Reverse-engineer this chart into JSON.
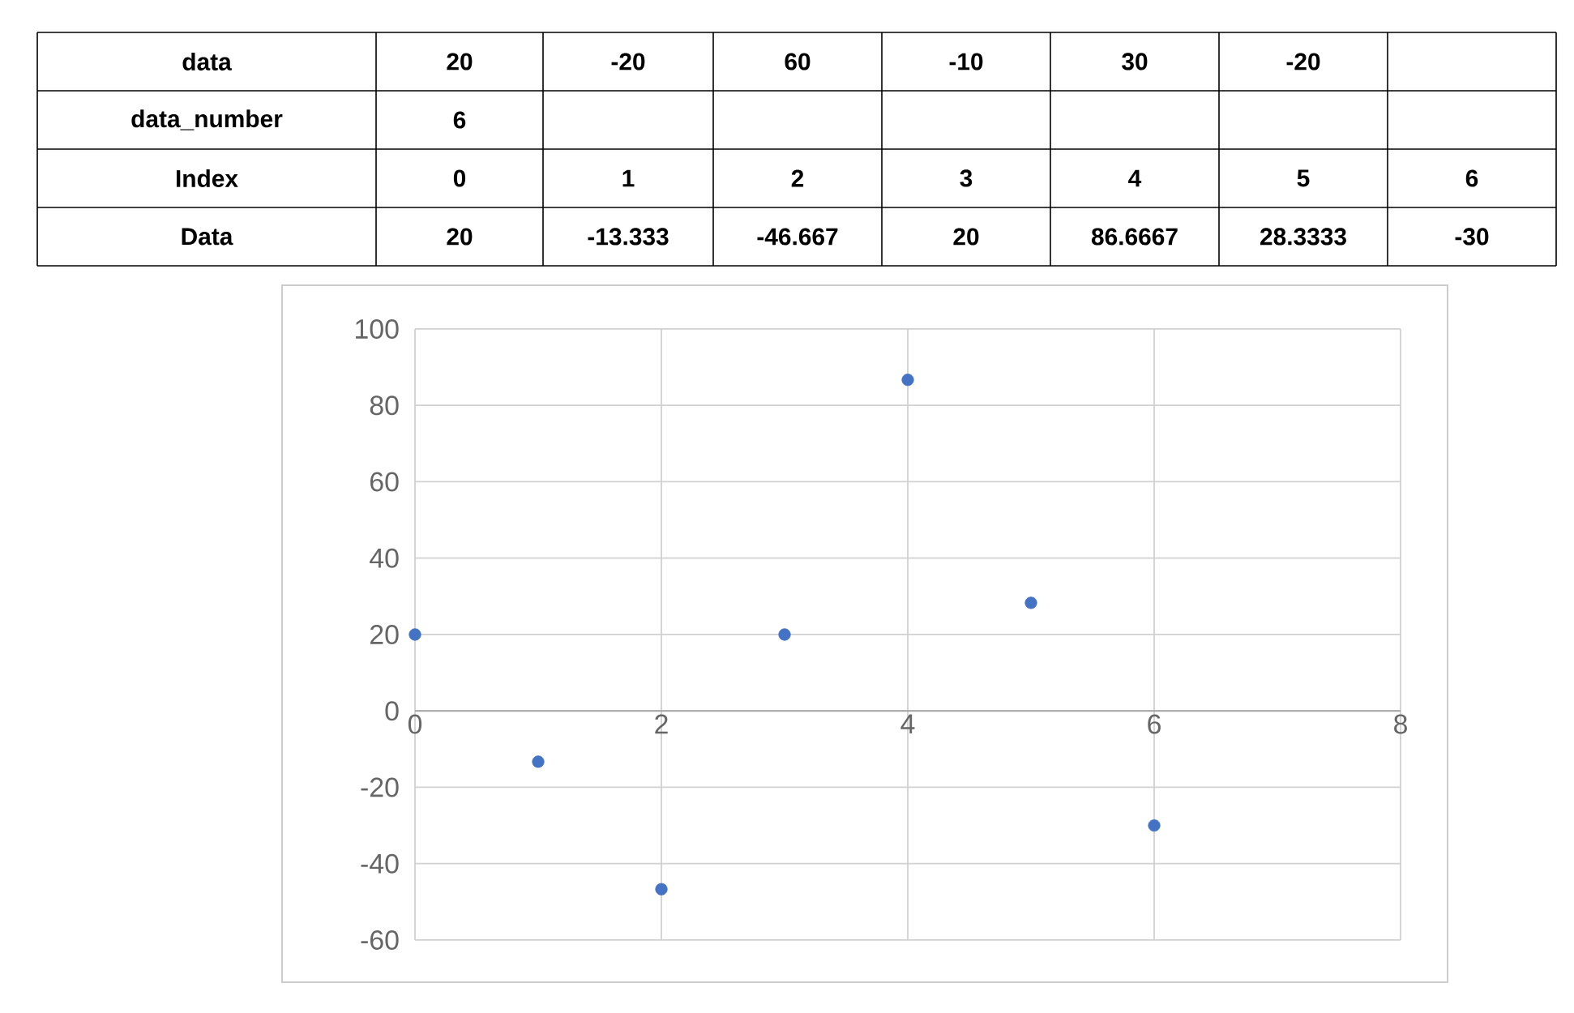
{
  "chart_data": {
    "type": "scatter",
    "x": [
      0,
      1,
      2,
      3,
      4,
      5,
      6
    ],
    "values": [
      20,
      -13.3,
      -46.7,
      20,
      86.7,
      28.3,
      -30
    ],
    "color": "#4472c4",
    "grid": true,
    "xlim": [
      0,
      8
    ],
    "xticks": [
      0,
      2,
      4,
      6,
      8
    ],
    "ylim": [
      -60,
      100
    ],
    "yticks": [
      -60,
      -40,
      -20,
      0,
      20,
      40,
      60,
      80,
      100
    ],
    "annotations": [
      "data",
      "20",
      "-20",
      "60",
      "-10",
      "30",
      "-20",
      "data_number",
      "6",
      "Index",
      "0",
      "1",
      "2",
      "3",
      "4",
      "5",
      "6",
      "Data",
      "20",
      "-13.333",
      "-46.667",
      "20",
      "86.6667",
      "28.3333",
      "-30"
    ]
  }
}
